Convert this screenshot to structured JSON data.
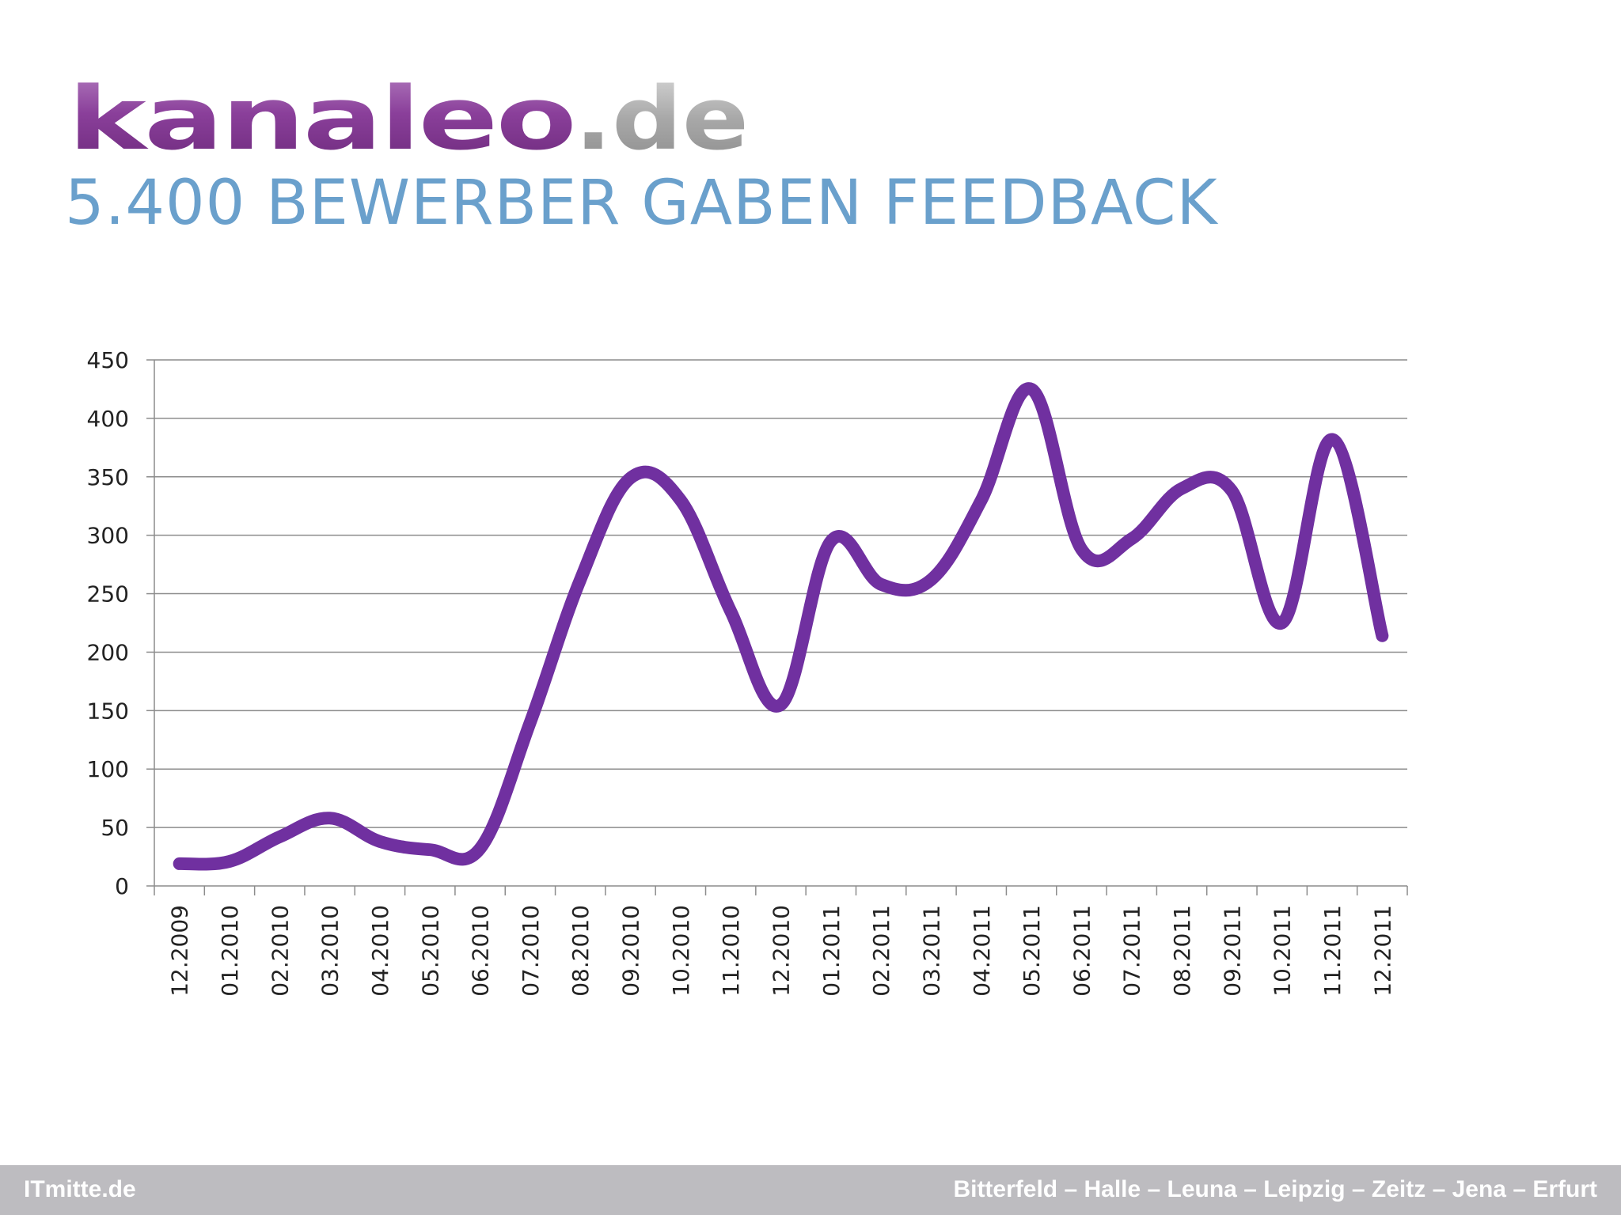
{
  "header": {
    "logo_text": "kanaleo.de",
    "title": "5.400 BEWERBER GABEN FEEDBACK"
  },
  "footer": {
    "left": "ITmitte.de",
    "right": "Bitterfeld – Halle – Leuna – Leipzig – Zeitz – Jena – Erfurt"
  },
  "colors": {
    "line": "#7030a0",
    "title": "#6aa0cc",
    "logo_purple": "#8a3f9a",
    "logo_gray": "#a6a6a6",
    "footer_bg": "#bdbcc0"
  },
  "chart_data": {
    "type": "line",
    "title": "",
    "xlabel": "",
    "ylabel": "",
    "ylim": [
      0,
      450
    ],
    "yticks": [
      0,
      50,
      100,
      150,
      200,
      250,
      300,
      350,
      400,
      450
    ],
    "grid": true,
    "categories": [
      "12.2009",
      "01.2010",
      "02.2010",
      "03.2010",
      "04.2010",
      "05.2010",
      "06.2010",
      "07.2010",
      "08.2010",
      "09.2010",
      "10.2010",
      "11.2010",
      "12.2010",
      "01.2011",
      "02.2011",
      "03.2011",
      "04.2011",
      "05.2011",
      "06.2011",
      "07.2011",
      "08.2011",
      "09.2011",
      "10.2011",
      "11.2011",
      "12.2011"
    ],
    "series": [
      {
        "values": [
          19,
          21,
          42,
          58,
          38,
          31,
          32,
          140,
          262,
          349,
          330,
          235,
          155,
          295,
          258,
          262,
          330,
          425,
          288,
          297,
          340,
          338,
          225,
          382,
          214
        ]
      }
    ]
  }
}
